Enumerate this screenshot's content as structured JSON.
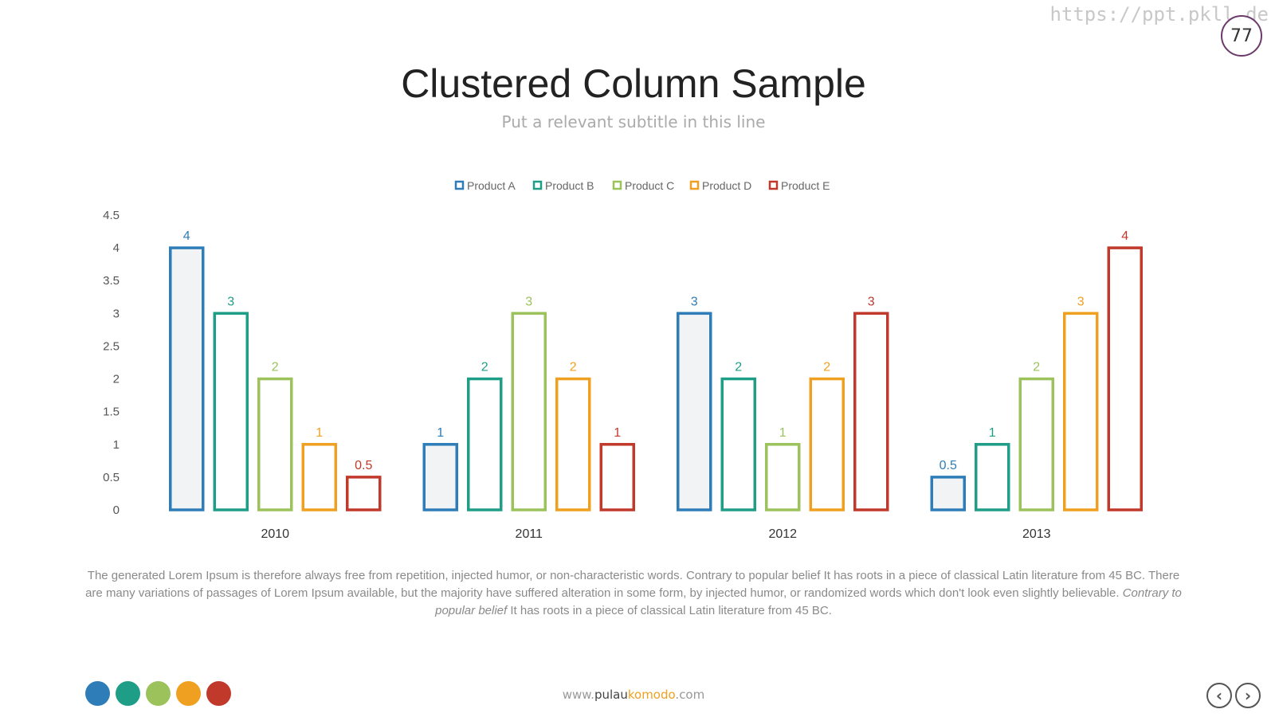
{
  "watermark": "https://ppt.pkll.de",
  "slide_number": "77",
  "title": "Clustered Column Sample",
  "subtitle": "Put a relevant subtitle in this line",
  "chart_data": {
    "type": "bar",
    "categories": [
      "2010",
      "2011",
      "2012",
      "2013"
    ],
    "series": [
      {
        "name": "Product A",
        "color": "#2e7db8",
        "values": [
          4,
          1,
          3,
          0.5
        ]
      },
      {
        "name": "Product B",
        "color": "#1f9e87",
        "values": [
          3,
          2,
          2,
          1
        ]
      },
      {
        "name": "Product C",
        "color": "#9cc25c",
        "values": [
          2,
          3,
          1,
          2
        ]
      },
      {
        "name": "Product D",
        "color": "#f0a020",
        "values": [
          1,
          2,
          2,
          3
        ]
      },
      {
        "name": "Product E",
        "color": "#c0392b",
        "values": [
          0.5,
          1,
          3,
          4
        ]
      }
    ],
    "ylim": [
      0,
      4.5
    ],
    "yticks": [
      "0",
      "0.5",
      "1",
      "1.5",
      "2",
      "2.5",
      "3",
      "3.5",
      "4",
      "4.5"
    ],
    "ytick_values": [
      0,
      0.5,
      1,
      1.5,
      2,
      2.5,
      3,
      3.5,
      4,
      4.5
    ],
    "legend_position": "top",
    "grid": false,
    "data_labels": true
  },
  "body": {
    "text_1": "The generated Lorem Ipsum is therefore always free from repetition, injected humor, or non-characteristic words. Contrary to popular belief It has roots in a piece of classical Latin literature from 45 BC. There are many variations of passages of Lorem Ipsum available, but the majority have suffered alteration in some form, by injected humor, or randomized words which don't look even slightly believable. ",
    "text_italic": "Contrary to popular belief",
    "text_2": " It has roots in a piece of classical Latin literature from 45 BC."
  },
  "footer": {
    "url_prefix": "www.",
    "url_strong": "pulau",
    "url_accent": "komodo",
    "url_suffix": ".com"
  },
  "dots": [
    "#2e7db8",
    "#1f9e87",
    "#9cc25c",
    "#f0a020",
    "#c0392b"
  ],
  "nav": {
    "prev": "‹",
    "next": "›"
  }
}
